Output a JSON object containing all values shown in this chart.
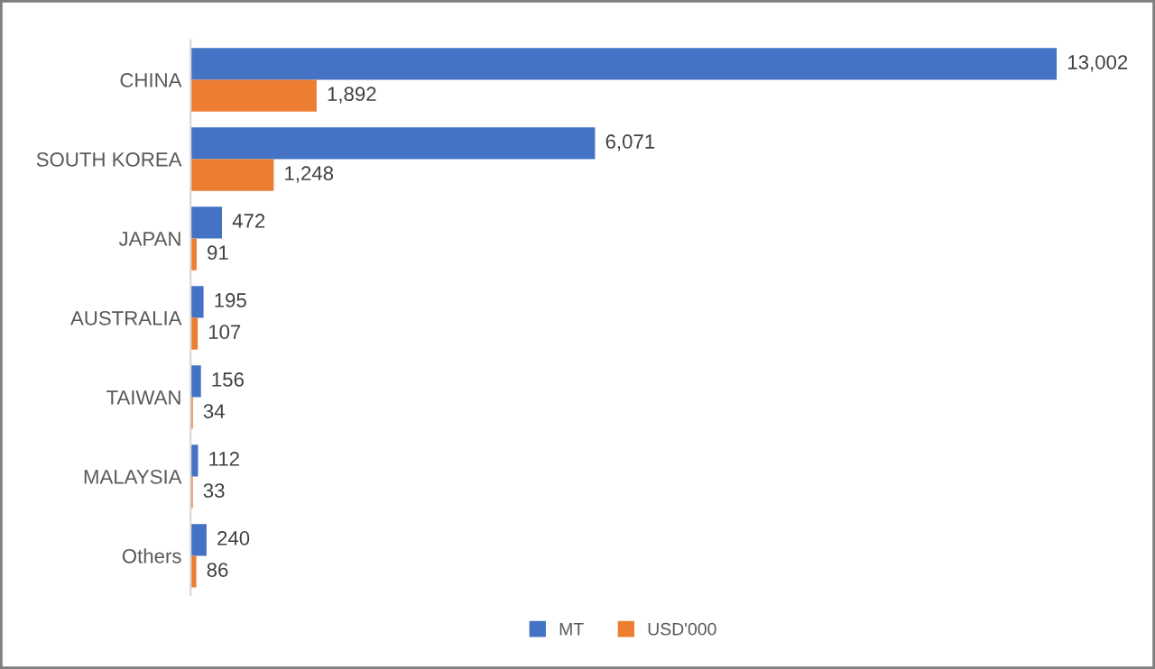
{
  "chart_data": {
    "type": "bar",
    "orientation": "horizontal",
    "categories": [
      "CHINA",
      "SOUTH KOREA",
      "JAPAN",
      "AUSTRALIA",
      "TAIWAN",
      "MALAYSIA",
      "Others"
    ],
    "series": [
      {
        "name": "MT",
        "color": "#4472c4",
        "values": [
          13002,
          6071,
          472,
          195,
          156,
          112,
          240
        ],
        "value_labels": [
          "13,002",
          "6,071",
          "472",
          "195",
          "156",
          "112",
          "240"
        ]
      },
      {
        "name": "USD'000",
        "color": "#ed7d31",
        "values": [
          1892,
          1248,
          91,
          107,
          34,
          33,
          86
        ],
        "value_labels": [
          "1,892",
          "1,248",
          "91",
          "107",
          "34",
          "33",
          "86"
        ]
      }
    ],
    "grid": false,
    "legend": "bottom",
    "tick_labels": "y"
  }
}
